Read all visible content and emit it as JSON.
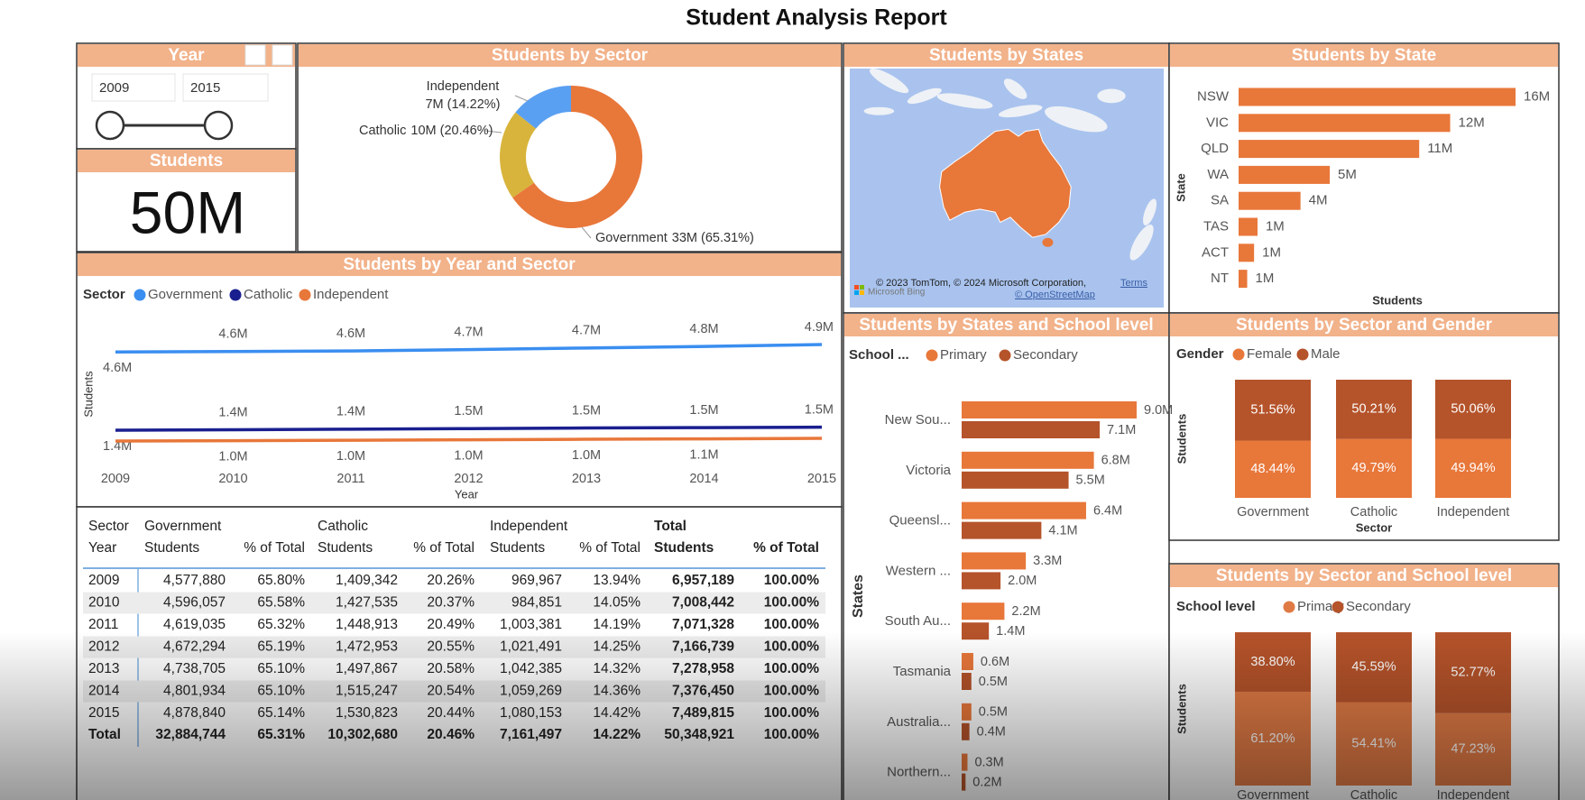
{
  "title": "Student Analysis Report",
  "slicer": {
    "title": "Year",
    "from": "2009",
    "to": "2015"
  },
  "card": {
    "title": "Students",
    "value": "50M"
  },
  "chart_data": [
    {
      "type": "donut",
      "title": "Students by Sector",
      "categories": [
        "Government",
        "Catholic",
        "Independent"
      ],
      "values": [
        65.31,
        20.46,
        14.22
      ],
      "value_labels": [
        "33M (65.31%)",
        "10M (20.46%)",
        "7M (14.22%)"
      ],
      "colors": [
        "#e8773a",
        "#d8b43c",
        "#5aa0f2"
      ]
    },
    {
      "type": "map",
      "title": "Students by States",
      "attribution": [
        "© 2023 TomTom, © 2024 Microsoft Corporation,",
        "Terms",
        "© OpenStreetMap",
        "Microsoft Bing"
      ],
      "color": "#e8773a"
    },
    {
      "type": "hbar",
      "title": "Students by State",
      "categories": [
        "NSW",
        "VIC",
        "QLD",
        "WA",
        "SA",
        "TAS",
        "ACT",
        "NT"
      ],
      "values": [
        16.1,
        12.3,
        10.5,
        5.3,
        3.6,
        1.1,
        0.9,
        0.5
      ],
      "value_labels": [
        "16M",
        "12M",
        "11M",
        "5M",
        "4M",
        "1M",
        "1M",
        "1M"
      ],
      "color": "#e8773a",
      "xlabel": "Students",
      "ylabel": "State"
    },
    {
      "type": "line",
      "title": "Students by Year and Sector",
      "legend_title": "Sector",
      "x": [
        2009,
        2010,
        2011,
        2012,
        2013,
        2014,
        2015
      ],
      "xlim": [
        2009,
        2015
      ],
      "xticks": [
        2009,
        2010,
        2011,
        2012,
        2013,
        2014,
        2015
      ],
      "xlabel": "Year",
      "ylabel": "Students",
      "series": [
        {
          "name": "Government",
          "color": "#3a8ef0",
          "values": [
            4.578,
            4.596,
            4.619,
            4.672,
            4.739,
            4.802,
            4.879
          ],
          "value_labels": [
            "4.6M",
            "4.6M",
            "4.6M",
            "4.7M",
            "4.7M",
            "4.8M",
            "4.9M"
          ]
        },
        {
          "name": "Catholic",
          "color": "#1a1f8f",
          "values": [
            1.409,
            1.428,
            1.449,
            1.473,
            1.498,
            1.515,
            1.531
          ],
          "value_labels": [
            "1.4M",
            "1.4M",
            "1.4M",
            "1.5M",
            "1.5M",
            "1.5M",
            "1.5M"
          ]
        },
        {
          "name": "Independent",
          "color": "#e8773a",
          "values": [
            0.97,
            0.985,
            1.003,
            1.021,
            1.042,
            1.059,
            1.08
          ],
          "value_labels": [
            null,
            "1.0M",
            "1.0M",
            "1.0M",
            "1.0M",
            "1.1M",
            null
          ]
        }
      ]
    },
    {
      "type": "grouped_hbar",
      "title": "Students by States and School level",
      "legend_title": "School ...",
      "categories": [
        "New Sou...",
        "Victoria",
        "Queensl...",
        "Western ...",
        "South Au...",
        "Tasmania",
        "Australia...",
        "Northern..."
      ],
      "ylabel": "States",
      "series": [
        {
          "name": "Primary",
          "color": "#e8773a",
          "values": [
            9.0,
            6.8,
            6.4,
            3.3,
            2.2,
            0.6,
            0.5,
            0.3
          ],
          "value_labels": [
            "9.0M",
            "6.8M",
            "6.4M",
            "3.3M",
            "2.2M",
            "0.6M",
            "0.5M",
            "0.3M"
          ]
        },
        {
          "name": "Secondary",
          "color": "#b5532a",
          "values": [
            7.1,
            5.5,
            4.1,
            2.0,
            1.4,
            0.5,
            0.4,
            0.2
          ],
          "value_labels": [
            "7.1M",
            "5.5M",
            "4.1M",
            "2.0M",
            "1.4M",
            "0.5M",
            "0.4M",
            "0.2M"
          ]
        }
      ]
    },
    {
      "type": "stacked_column_100",
      "title": "Students by Sector and Gender",
      "legend_title": "Gender",
      "categories": [
        "Government",
        "Catholic",
        "Independent"
      ],
      "xlabel": "Sector",
      "ylabel": "Students",
      "series": [
        {
          "name": "Female",
          "color": "#e8773a",
          "values": [
            48.44,
            49.79,
            49.94
          ],
          "value_labels": [
            "48.44%",
            "49.79%",
            "49.94%"
          ]
        },
        {
          "name": "Male",
          "color": "#b5532a",
          "values": [
            51.56,
            50.21,
            50.06
          ],
          "value_labels": [
            "51.56%",
            "50.21%",
            "50.06%"
          ]
        }
      ]
    },
    {
      "type": "stacked_column_100",
      "title": "Students by Sector and School level",
      "legend_title": "School level",
      "categories": [
        "Government",
        "Catholic",
        "Independent"
      ],
      "ylabel": "Students",
      "series": [
        {
          "name": "Primary",
          "color": "#e07a45",
          "values": [
            61.2,
            54.41,
            47.23
          ],
          "value_labels": [
            "61.20%",
            "54.41%",
            "47.23%"
          ]
        },
        {
          "name": "Secondary",
          "color": "#b5532a",
          "values": [
            38.8,
            45.59,
            52.77
          ],
          "value_labels": [
            "38.80%",
            "45.59%",
            "52.77%"
          ]
        }
      ]
    }
  ],
  "table": {
    "corner": [
      "Sector",
      "Year"
    ],
    "groups": [
      "Government",
      "Catholic",
      "Independent",
      "Total"
    ],
    "columns": [
      "Students",
      "% of Total",
      "Students",
      "% of Total",
      "Students",
      "% of Total",
      "Students",
      "% of Total"
    ],
    "rows": [
      [
        "2009",
        "4,577,880",
        "65.80%",
        "1,409,342",
        "20.26%",
        "969,967",
        "13.94%",
        "6,957,189",
        "100.00%"
      ],
      [
        "2010",
        "4,596,057",
        "65.58%",
        "1,427,535",
        "20.37%",
        "984,851",
        "14.05%",
        "7,008,442",
        "100.00%"
      ],
      [
        "2011",
        "4,619,035",
        "65.32%",
        "1,448,913",
        "20.49%",
        "1,003,381",
        "14.19%",
        "7,071,328",
        "100.00%"
      ],
      [
        "2012",
        "4,672,294",
        "65.19%",
        "1,472,953",
        "20.55%",
        "1,021,491",
        "14.25%",
        "7,166,739",
        "100.00%"
      ],
      [
        "2013",
        "4,738,705",
        "65.10%",
        "1,497,867",
        "20.58%",
        "1,042,385",
        "14.32%",
        "7,278,958",
        "100.00%"
      ],
      [
        "2014",
        "4,801,934",
        "65.10%",
        "1,515,247",
        "20.54%",
        "1,059,269",
        "14.36%",
        "7,376,450",
        "100.00%"
      ],
      [
        "2015",
        "4,878,840",
        "65.14%",
        "1,530,823",
        "20.44%",
        "1,080,153",
        "14.42%",
        "7,489,815",
        "100.00%"
      ]
    ],
    "total": [
      "Total",
      "32,884,744",
      "65.31%",
      "10,302,680",
      "20.46%",
      "7,161,497",
      "14.22%",
      "50,348,921",
      "100.00%"
    ]
  }
}
